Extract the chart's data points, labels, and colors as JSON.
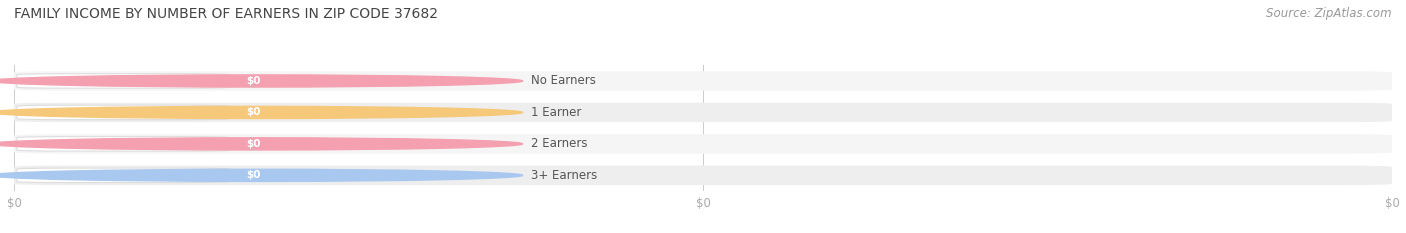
{
  "title": "FAMILY INCOME BY NUMBER OF EARNERS IN ZIP CODE 37682",
  "source_text": "Source: ZipAtlas.com",
  "categories": [
    "No Earners",
    "1 Earner",
    "2 Earners",
    "3+ Earners"
  ],
  "values": [
    0,
    0,
    0,
    0
  ],
  "bar_colors": [
    "#f4a0b0",
    "#f5c87a",
    "#f4a0b0",
    "#a8c8f0"
  ],
  "bg_bar_colors": [
    "#f5f5f5",
    "#eeeeee",
    "#f5f5f5",
    "#eeeeee"
  ],
  "value_label": "$0",
  "background_color": "#ffffff",
  "title_color": "#444444",
  "source_color": "#999999",
  "label_text_color": "#555555",
  "value_text_color": "#ffffff",
  "tick_color": "#aaaaaa",
  "grid_color": "#cccccc"
}
